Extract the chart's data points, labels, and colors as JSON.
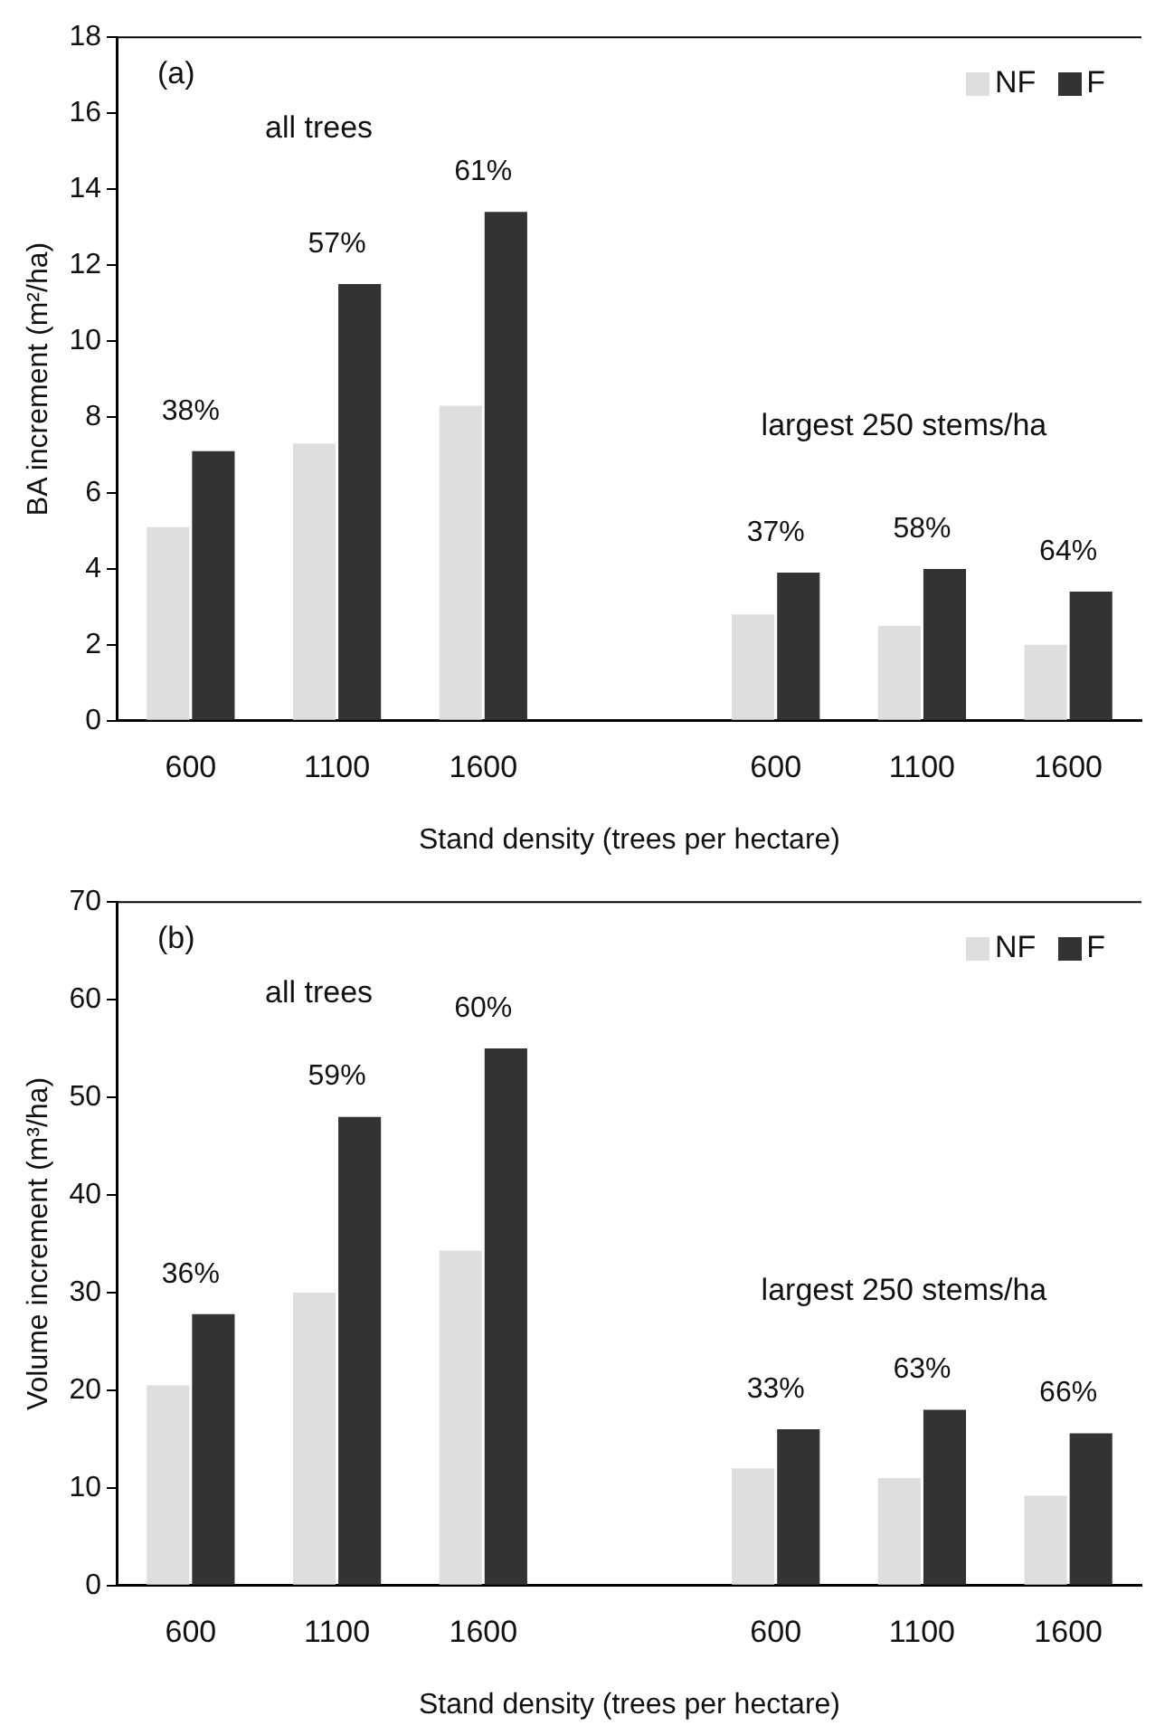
{
  "chart_data": [
    {
      "type": "bar",
      "ylabel": "BA increment (m²/ha)",
      "xlabel": "Stand density (trees per hectare)",
      "categories": [
        "600",
        "1100",
        "1600",
        null,
        "600",
        "1100",
        "1600"
      ],
      "series": [
        {
          "name": "NF",
          "color": "#dedede",
          "values": [
            5.1,
            7.3,
            8.3,
            null,
            2.8,
            2.5,
            2.0
          ]
        },
        {
          "name": "F",
          "color": "#333333",
          "values": [
            7.1,
            11.5,
            13.4,
            null,
            3.9,
            4.0,
            3.4
          ]
        }
      ],
      "ylim": [
        0,
        18
      ],
      "yticks": [
        0,
        2,
        4,
        6,
        8,
        10,
        12,
        14,
        16,
        18
      ],
      "grid": false,
      "legend": "top right",
      "annotations": [
        "(a)",
        "all trees",
        "largest 250 stems/ha",
        "38%",
        "57%",
        "61%",
        "37%",
        "58%",
        "64%"
      ]
    },
    {
      "type": "bar",
      "ylabel": "Volume increment (m³/ha)",
      "xlabel": "Stand density (trees per hectare)",
      "categories": [
        "600",
        "1100",
        "1600",
        null,
        "600",
        "1100",
        "1600"
      ],
      "series": [
        {
          "name": "NF",
          "color": "#dedede",
          "values": [
            20.5,
            30,
            34.3,
            null,
            12,
            11,
            9.2
          ]
        },
        {
          "name": "F",
          "color": "#333333",
          "values": [
            27.8,
            48,
            55,
            null,
            16,
            18,
            15.6
          ]
        }
      ],
      "ylim": [
        0,
        70
      ],
      "yticks": [
        0,
        10,
        20,
        30,
        40,
        50,
        60,
        70
      ],
      "grid": false,
      "legend": "top right",
      "annotations": [
        "(b)",
        "all trees",
        "largest 250 stems/ha",
        "36%",
        "59%",
        "60%",
        "33%",
        "63%",
        "66%"
      ]
    }
  ]
}
